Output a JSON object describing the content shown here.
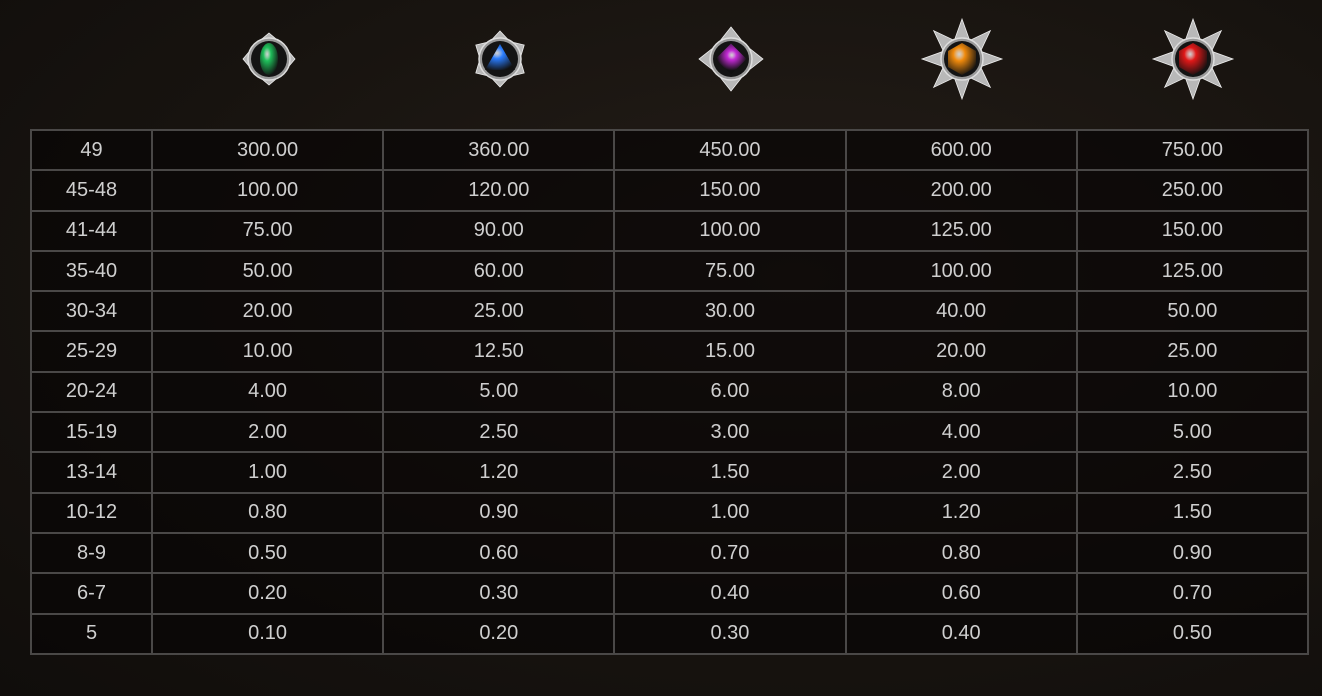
{
  "symbols": [
    {
      "name": "green-gem",
      "color": "#1fbf5a"
    },
    {
      "name": "blue-gem",
      "color": "#2a7dff"
    },
    {
      "name": "purple-gem",
      "color": "#c42ad6"
    },
    {
      "name": "orange-gem",
      "color": "#f08a0c"
    },
    {
      "name": "red-gem",
      "color": "#e01818"
    }
  ],
  "rows": [
    {
      "range": "49",
      "values": [
        "300.00",
        "360.00",
        "450.00",
        "600.00",
        "750.00"
      ]
    },
    {
      "range": "45-48",
      "values": [
        "100.00",
        "120.00",
        "150.00",
        "200.00",
        "250.00"
      ]
    },
    {
      "range": "41-44",
      "values": [
        "75.00",
        "90.00",
        "100.00",
        "125.00",
        "150.00"
      ]
    },
    {
      "range": "35-40",
      "values": [
        "50.00",
        "60.00",
        "75.00",
        "100.00",
        "125.00"
      ]
    },
    {
      "range": "30-34",
      "values": [
        "20.00",
        "25.00",
        "30.00",
        "40.00",
        "50.00"
      ]
    },
    {
      "range": "25-29",
      "values": [
        "10.00",
        "12.50",
        "15.00",
        "20.00",
        "25.00"
      ]
    },
    {
      "range": "20-24",
      "values": [
        "4.00",
        "5.00",
        "6.00",
        "8.00",
        "10.00"
      ]
    },
    {
      "range": "15-19",
      "values": [
        "2.00",
        "2.50",
        "3.00",
        "4.00",
        "5.00"
      ]
    },
    {
      "range": "13-14",
      "values": [
        "1.00",
        "1.20",
        "1.50",
        "2.00",
        "2.50"
      ]
    },
    {
      "range": "10-12",
      "values": [
        "0.80",
        "0.90",
        "1.00",
        "1.20",
        "1.50"
      ]
    },
    {
      "range": "8-9",
      "values": [
        "0.50",
        "0.60",
        "0.70",
        "0.80",
        "0.90"
      ]
    },
    {
      "range": "6-7",
      "values": [
        "0.20",
        "0.30",
        "0.40",
        "0.60",
        "0.70"
      ]
    },
    {
      "range": "5",
      "values": [
        "0.10",
        "0.20",
        "0.30",
        "0.40",
        "0.50"
      ]
    }
  ]
}
